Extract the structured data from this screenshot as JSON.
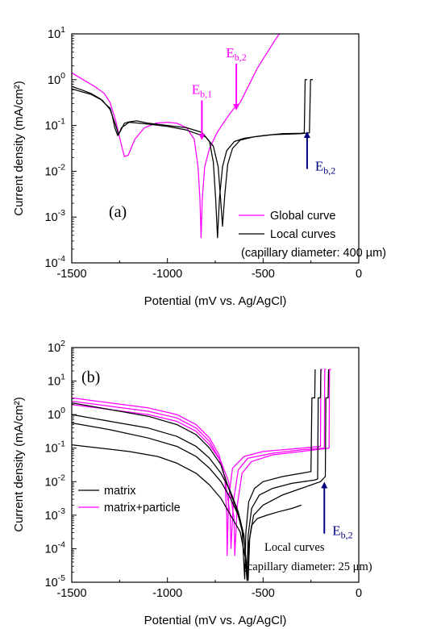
{
  "chart_data": [
    {
      "panel_label": "(a)",
      "type": "line",
      "xlabel": "Potential (mV vs. Ag/AgCl)",
      "ylabel": "Current density (mA/cm²)",
      "xlim": [
        -1500,
        0
      ],
      "ylim_log10": [
        -4,
        1
      ],
      "log_y": true,
      "x_ticks": [
        "-1500",
        "-1000",
        "-500",
        "0"
      ],
      "y_ticks": [
        {
          "base": "10",
          "exp": "1"
        },
        {
          "base": "10",
          "exp": "0"
        },
        {
          "base": "10",
          "exp": "-1"
        },
        {
          "base": "10",
          "exp": "-2"
        },
        {
          "base": "10",
          "exp": "-3"
        },
        {
          "base": "10",
          "exp": "-4"
        }
      ],
      "legend": {
        "placement": "bottom-right",
        "entries": [
          {
            "label": "Global curve",
            "color": "#ff00ff"
          },
          {
            "label": "Local curves",
            "color": "#000000"
          }
        ],
        "note": "(capillary diameter: 400 µm)"
      },
      "annotations": [
        {
          "base": "E",
          "sub": "b,1",
          "color": "#ff00ff",
          "x": -820,
          "arrow_from": -0.45,
          "arrow_to": -1.25
        },
        {
          "base": "E",
          "sub": "b,2",
          "color": "#ff00ff",
          "x": -640,
          "arrow_from": 0.35,
          "arrow_to": -0.6
        },
        {
          "base": "E",
          "sub": "b,2",
          "color": "#000080",
          "x": -270,
          "arrow_from": -1.95,
          "arrow_to": -1.2
        }
      ],
      "series": [
        {
          "color": "#ff00ff",
          "points": [
            [
              -1500,
              0.15
            ],
            [
              -1440,
              0.0
            ],
            [
              -1380,
              -0.15
            ],
            [
              -1330,
              -0.3
            ],
            [
              -1300,
              -0.5
            ],
            [
              -1270,
              -0.9
            ],
            [
              -1245,
              -1.35
            ],
            [
              -1225,
              -1.68
            ],
            [
              -1205,
              -1.65
            ],
            [
              -1170,
              -1.3
            ],
            [
              -1120,
              -1.05
            ],
            [
              -1060,
              -0.95
            ],
            [
              -1000,
              -0.93
            ],
            [
              -950,
              -0.95
            ],
            [
              -900,
              -1.05
            ],
            [
              -860,
              -1.3
            ],
            [
              -840,
              -1.9
            ],
            [
              -830,
              -2.6
            ],
            [
              -824,
              -3.45
            ],
            [
              -818,
              -2.6
            ],
            [
              -805,
              -1.9
            ],
            [
              -780,
              -1.5
            ],
            [
              -740,
              -1.15
            ],
            [
              -700,
              -0.9
            ],
            [
              -670,
              -0.72
            ],
            [
              -650,
              -0.62
            ],
            [
              -620,
              -0.5
            ],
            [
              -590,
              -0.25
            ],
            [
              -560,
              0.0
            ],
            [
              -530,
              0.25
            ],
            [
              -500,
              0.45
            ],
            [
              -470,
              0.65
            ],
            [
              -440,
              0.85
            ],
            [
              -415,
              1.0
            ]
          ]
        },
        {
          "color": "#000000",
          "points": [
            [
              -1500,
              -0.15
            ],
            [
              -1450,
              -0.22
            ],
            [
              -1400,
              -0.3
            ],
            [
              -1350,
              -0.42
            ],
            [
              -1320,
              -0.55
            ],
            [
              -1300,
              -0.62
            ],
            [
              -1290,
              -0.75
            ],
            [
              -1275,
              -1.05
            ],
            [
              -1260,
              -1.22
            ],
            [
              -1245,
              -1.12
            ],
            [
              -1225,
              -0.95
            ],
            [
              -1200,
              -0.92
            ],
            [
              -1160,
              -0.9
            ],
            [
              -1100,
              -0.95
            ],
            [
              -1000,
              -1.0
            ],
            [
              -900,
              -1.05
            ],
            [
              -820,
              -1.15
            ],
            [
              -780,
              -1.35
            ],
            [
              -760,
              -1.8
            ],
            [
              -748,
              -2.6
            ],
            [
              -738,
              -3.45
            ],
            [
              -728,
              -2.6
            ],
            [
              -712,
              -1.9
            ],
            [
              -690,
              -1.55
            ],
            [
              -650,
              -1.35
            ],
            [
              -600,
              -1.28
            ],
            [
              -500,
              -1.22
            ],
            [
              -400,
              -1.18
            ],
            [
              -300,
              -1.17
            ],
            [
              -285,
              -1.16
            ],
            [
              -280,
              0.0
            ],
            [
              -270,
              0.0
            ]
          ]
        },
        {
          "color": "#000000",
          "points": [
            [
              -1500,
              -0.2
            ],
            [
              -1400,
              -0.32
            ],
            [
              -1340,
              -0.45
            ],
            [
              -1300,
              -0.65
            ],
            [
              -1270,
              -1.0
            ],
            [
              -1255,
              -1.2
            ],
            [
              -1240,
              -1.05
            ],
            [
              -1200,
              -0.93
            ],
            [
              -1100,
              -0.97
            ],
            [
              -1000,
              -1.02
            ],
            [
              -900,
              -1.1
            ],
            [
              -800,
              -1.25
            ],
            [
              -760,
              -1.45
            ],
            [
              -735,
              -1.9
            ],
            [
              -722,
              -2.6
            ],
            [
              -712,
              -3.2
            ],
            [
              -700,
              -2.5
            ],
            [
              -685,
              -1.85
            ],
            [
              -660,
              -1.5
            ],
            [
              -620,
              -1.32
            ],
            [
              -550,
              -1.25
            ],
            [
              -450,
              -1.2
            ],
            [
              -300,
              -1.18
            ],
            [
              -258,
              -1.16
            ],
            [
              -252,
              0.0
            ],
            [
              -240,
              0.0
            ]
          ]
        }
      ]
    },
    {
      "panel_label": "(b)",
      "type": "line",
      "xlabel": "Potential (mV vs. Ag/AgCl)",
      "ylabel": "Current density (mA/cm²)",
      "xlim": [
        -1500,
        0
      ],
      "ylim_log10": [
        -5,
        2
      ],
      "log_y": true,
      "x_ticks": [
        "-1500",
        "-1000",
        "-500",
        "0"
      ],
      "y_ticks": [
        {
          "base": "10",
          "exp": "2"
        },
        {
          "base": "10",
          "exp": "1"
        },
        {
          "base": "10",
          "exp": "0"
        },
        {
          "base": "10",
          "exp": "-1"
        },
        {
          "base": "10",
          "exp": "-2"
        },
        {
          "base": "10",
          "exp": "-3"
        },
        {
          "base": "10",
          "exp": "-4"
        },
        {
          "base": "10",
          "exp": "-5"
        }
      ],
      "legend": {
        "placement": "bottom-left",
        "entries": [
          {
            "label": "matrix",
            "color": "#000000"
          },
          {
            "label": "matrix+particle",
            "color": "#ff00ff"
          }
        ]
      },
      "text_annotations": [
        "Local curves",
        "(capillary diameter: 25 μm)"
      ],
      "annotations": [
        {
          "base": "E",
          "sub": "b,2",
          "color": "#000080",
          "x": -180,
          "arrow_from": -3.55,
          "arrow_to": -2.1
        }
      ],
      "series": [
        {
          "color": "#ff00ff",
          "points": [
            [
              -1500,
              0.5
            ],
            [
              -1300,
              0.35
            ],
            [
              -1100,
              0.2
            ],
            [
              -950,
              0.0
            ],
            [
              -850,
              -0.3
            ],
            [
              -780,
              -0.7
            ],
            [
              -730,
              -1.2
            ],
            [
              -700,
              -1.9
            ],
            [
              -690,
              -3.0
            ],
            [
              -688,
              -4.2
            ],
            [
              -680,
              -2.5
            ],
            [
              -660,
              -1.6
            ],
            [
              -600,
              -1.25
            ],
            [
              -500,
              -1.1
            ],
            [
              -300,
              -1.0
            ],
            [
              -200,
              -0.95
            ],
            [
              -198,
              1.35
            ],
            [
              -190,
              1.35
            ]
          ]
        },
        {
          "color": "#ff00ff",
          "points": [
            [
              -1500,
              0.4
            ],
            [
              -1300,
              0.25
            ],
            [
              -1100,
              0.1
            ],
            [
              -950,
              -0.1
            ],
            [
              -850,
              -0.4
            ],
            [
              -780,
              -0.8
            ],
            [
              -730,
              -1.3
            ],
            [
              -700,
              -1.9
            ],
            [
              -672,
              -3.0
            ],
            [
              -668,
              -4.0
            ],
            [
              -655,
              -2.6
            ],
            [
              -630,
              -1.65
            ],
            [
              -580,
              -1.3
            ],
            [
              -450,
              -1.15
            ],
            [
              -300,
              -1.05
            ],
            [
              -180,
              -1.0
            ],
            [
              -178,
              1.35
            ],
            [
              -172,
              1.35
            ]
          ]
        },
        {
          "color": "#ff00ff",
          "points": [
            [
              -1500,
              0.3
            ],
            [
              -1300,
              0.15
            ],
            [
              -1100,
              0.0
            ],
            [
              -950,
              -0.2
            ],
            [
              -850,
              -0.5
            ],
            [
              -780,
              -0.9
            ],
            [
              -720,
              -1.4
            ],
            [
              -680,
              -2.0
            ],
            [
              -652,
              -3.1
            ],
            [
              -648,
              -4.2
            ],
            [
              -635,
              -2.7
            ],
            [
              -610,
              -1.75
            ],
            [
              -560,
              -1.4
            ],
            [
              -450,
              -1.2
            ],
            [
              -300,
              -1.1
            ],
            [
              -155,
              -1.0
            ],
            [
              -153,
              1.35
            ],
            [
              -145,
              1.35
            ]
          ]
        },
        {
          "color": "#000000",
          "points": [
            [
              -1500,
              0.35
            ],
            [
              -1300,
              0.15
            ],
            [
              -1100,
              -0.05
            ],
            [
              -950,
              -0.3
            ],
            [
              -850,
              -0.6
            ],
            [
              -780,
              -1.0
            ],
            [
              -720,
              -1.5
            ],
            [
              -680,
              -2.2
            ],
            [
              -640,
              -2.8
            ],
            [
              -610,
              -3.4
            ],
            [
              -596,
              -4.9
            ],
            [
              -590,
              -3.5
            ],
            [
              -575,
              -2.6
            ],
            [
              -545,
              -2.2
            ],
            [
              -500,
              -2.0
            ],
            [
              -400,
              -1.85
            ],
            [
              -300,
              -1.75
            ],
            [
              -250,
              -1.7
            ],
            [
              -245,
              0.5
            ],
            [
              -230,
              0.5
            ],
            [
              -228,
              1.35
            ]
          ]
        },
        {
          "color": "#000000",
          "points": [
            [
              -1500,
              0.0
            ],
            [
              -1300,
              -0.2
            ],
            [
              -1100,
              -0.4
            ],
            [
              -950,
              -0.65
            ],
            [
              -850,
              -0.95
            ],
            [
              -780,
              -1.3
            ],
            [
              -720,
              -1.75
            ],
            [
              -670,
              -2.3
            ],
            [
              -630,
              -2.9
            ],
            [
              -600,
              -3.6
            ],
            [
              -584,
              -4.95
            ],
            [
              -578,
              -3.6
            ],
            [
              -560,
              -2.8
            ],
            [
              -520,
              -2.4
            ],
            [
              -450,
              -2.2
            ],
            [
              -350,
              -2.05
            ],
            [
              -230,
              -1.95
            ],
            [
              -215,
              -1.92
            ],
            [
              -212,
              0.5
            ],
            [
              -200,
              0.5
            ],
            [
              -198,
              1.35
            ]
          ]
        },
        {
          "color": "#000000",
          "points": [
            [
              -1500,
              -0.25
            ],
            [
              -1300,
              -0.45
            ],
            [
              -1100,
              -0.7
            ],
            [
              -950,
              -0.95
            ],
            [
              -850,
              -1.25
            ],
            [
              -780,
              -1.6
            ],
            [
              -720,
              -2.0
            ],
            [
              -670,
              -2.5
            ],
            [
              -630,
              -3.0
            ],
            [
              -600,
              -3.7
            ],
            [
              -578,
              -4.95
            ],
            [
              -570,
              -3.7
            ],
            [
              -550,
              -3.0
            ],
            [
              -500,
              -2.7
            ],
            [
              -400,
              -2.4
            ],
            [
              -300,
              -2.2
            ],
            [
              -200,
              -2.0
            ],
            [
              -175,
              -1.85
            ],
            [
              -172,
              0.5
            ],
            [
              -160,
              0.5
            ],
            [
              -158,
              1.35
            ]
          ]
        },
        {
          "color": "#000000",
          "points": [
            [
              -1500,
              -0.9
            ],
            [
              -1350,
              -1.0
            ],
            [
              -1200,
              -1.1
            ],
            [
              -1050,
              -1.25
            ],
            [
              -950,
              -1.45
            ],
            [
              -850,
              -1.75
            ],
            [
              -780,
              -2.1
            ],
            [
              -720,
              -2.5
            ],
            [
              -670,
              -3.0
            ],
            [
              -620,
              -3.5
            ],
            [
              -592,
              -4.3
            ],
            [
              -584,
              -4.9
            ],
            [
              -576,
              -3.9
            ],
            [
              -560,
              -3.3
            ],
            [
              -530,
              -3.1
            ],
            [
              -480,
              -3.0
            ],
            [
              -420,
              -2.9
            ],
            [
              -350,
              -2.8
            ],
            [
              -300,
              -2.7
            ]
          ]
        }
      ]
    }
  ]
}
